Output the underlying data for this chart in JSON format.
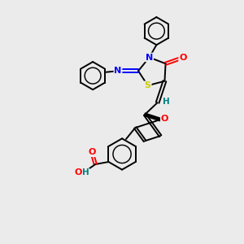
{
  "background_color": "#ebebeb",
  "bond_color": "#000000",
  "atom_colors": {
    "N": "#0000ff",
    "O": "#ff0000",
    "S": "#cccc00",
    "H": "#008080"
  },
  "lw": 1.4,
  "fs": 8.0
}
